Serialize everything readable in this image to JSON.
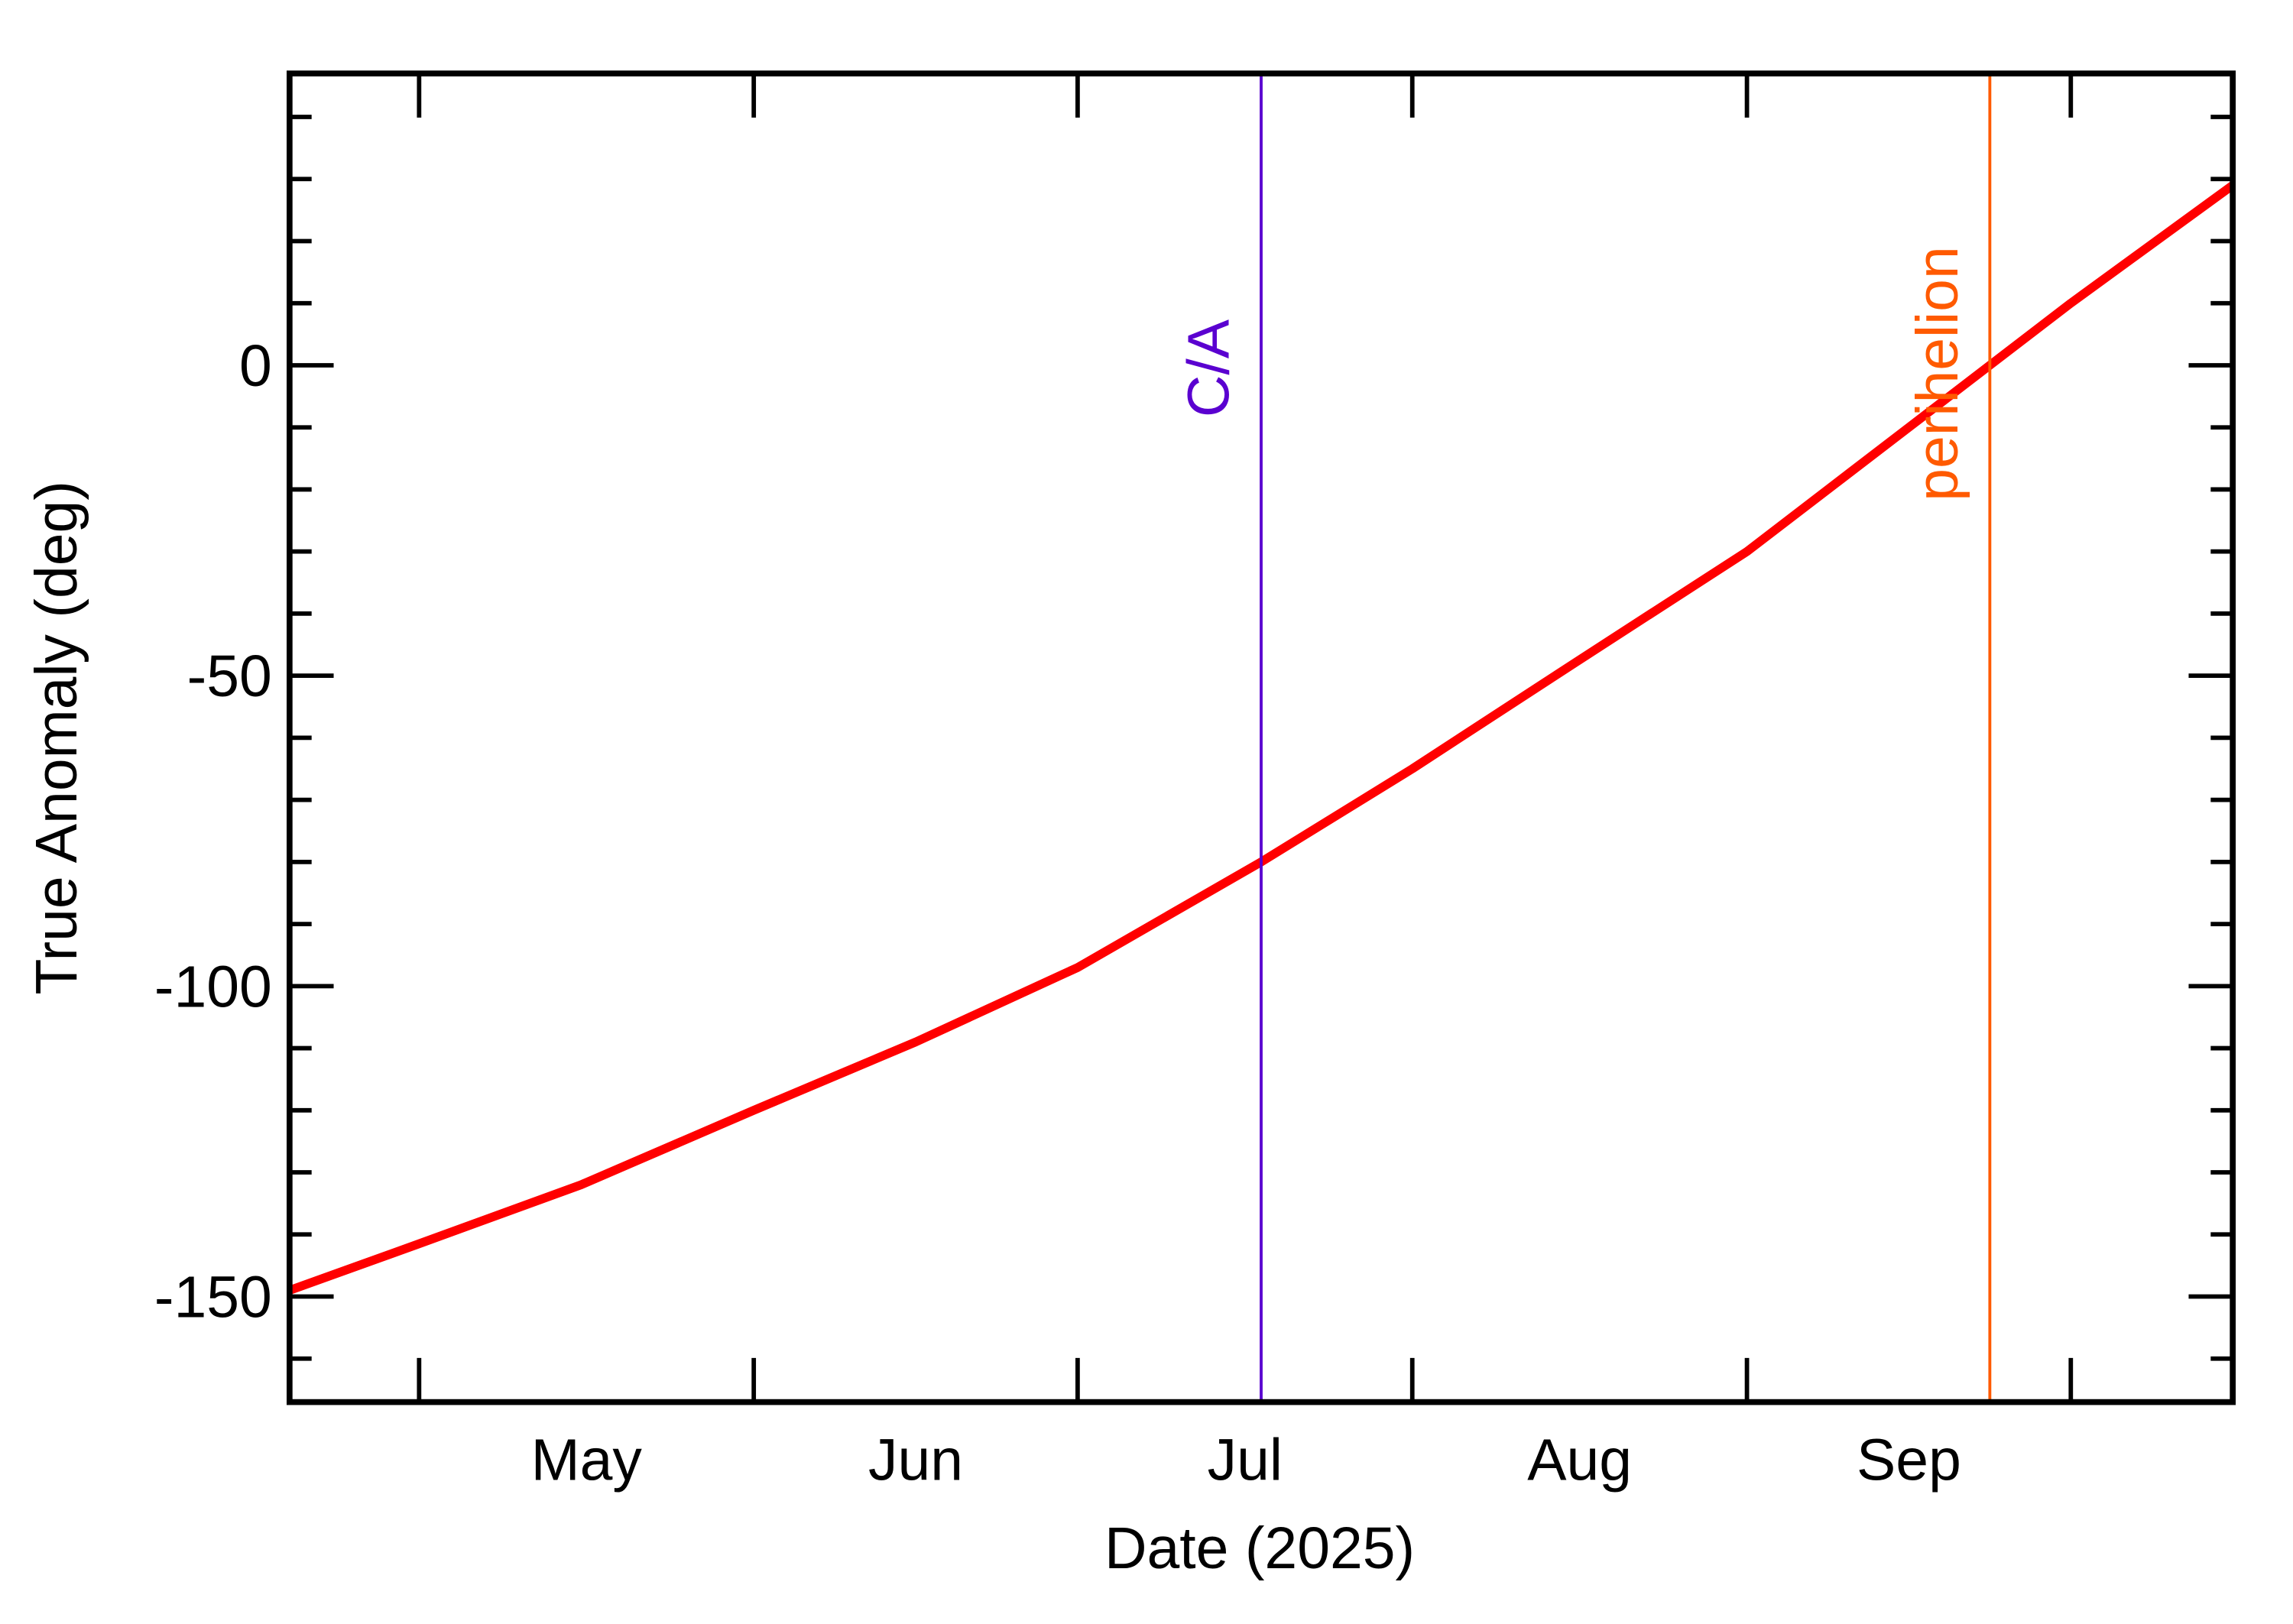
{
  "chart_data": {
    "type": "line",
    "xlabel": "Date (2025)",
    "ylabel": "True Anomaly (deg)",
    "x": [
      109,
      121,
      136,
      152,
      167,
      182,
      199,
      213,
      228,
      244,
      259,
      266.5,
      274,
      289
    ],
    "series": [
      {
        "name": "True Anomaly",
        "color": "#ff0000",
        "values": [
          -149,
          -141.5,
          -132,
          -120,
          -109,
          -97,
          -80,
          -65,
          -48,
          -30,
          -10,
          0,
          10,
          29
        ]
      }
    ],
    "xlim": [
      109,
      289
    ],
    "xticks": [
      {
        "value": 136.5,
        "label": "May"
      },
      {
        "value": 167,
        "label": "Jun"
      },
      {
        "value": 197.5,
        "label": "Jul"
      },
      {
        "value": 228.5,
        "label": "Aug"
      },
      {
        "value": 259,
        "label": "Sep"
      }
    ],
    "xtick_marks": [
      121,
      152,
      182,
      213,
      244,
      274
    ],
    "ylim": [
      -167,
      47
    ],
    "yticks": [
      -150,
      -100,
      -50,
      0
    ],
    "yminor": [
      -160,
      -140,
      -130,
      -120,
      -110,
      -90,
      -80,
      -70,
      -60,
      -40,
      -30,
      -20,
      -10,
      10,
      20,
      30,
      40
    ],
    "events": [
      {
        "label": "C/A",
        "x": 199,
        "color": "#5a00d0"
      },
      {
        "label": "perihelion",
        "x": 266.5,
        "color": "#ff5a00"
      }
    ]
  }
}
